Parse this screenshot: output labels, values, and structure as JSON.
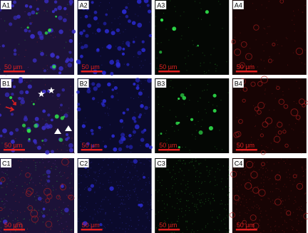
{
  "panels": [
    {
      "label": "A1",
      "scale": "50 µm"
    },
    {
      "label": "A2",
      "scale": "50 µm"
    },
    {
      "label": "A3",
      "scale": "50 µm"
    },
    {
      "label": "A4",
      "scale": "50 µm"
    },
    {
      "label": "B1",
      "scale": "50 µm"
    },
    {
      "label": "B2",
      "scale": "50 µm"
    },
    {
      "label": "B3",
      "scale": "50 µm"
    },
    {
      "label": "B4",
      "scale": "50 µm"
    },
    {
      "label": "C1",
      "scale": "50 µm"
    },
    {
      "label": "C2",
      "scale": "50 µm"
    },
    {
      "label": "C3",
      "scale": "50 µm"
    },
    {
      "label": "C4",
      "scale": "50 µm"
    }
  ]
}
